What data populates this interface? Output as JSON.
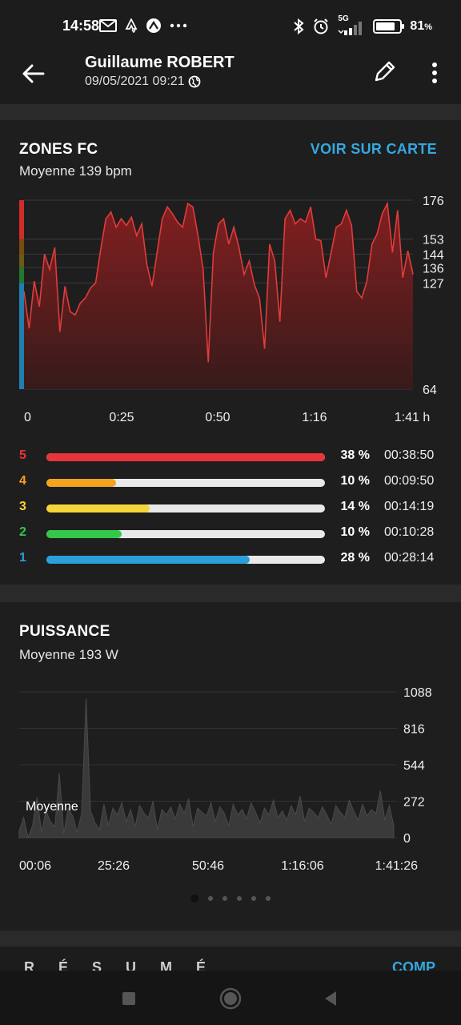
{
  "status": {
    "time": "14:58",
    "network": "5G",
    "battery_text": "81",
    "battery_unit": "%",
    "battery_level": 0.81
  },
  "header": {
    "name": "Guillaume ROBERT",
    "datetime": "09/05/2021 09:21"
  },
  "hr": {
    "title": "ZONES FC",
    "subtitle": "Moyenne 139 bpm",
    "map_link": "VOIR SUR CARTE",
    "y_labels": [
      "176",
      "153",
      "144",
      "136",
      "127",
      "64"
    ],
    "x_labels": [
      "0",
      "0:25",
      "0:50",
      "1:16",
      "1:41 h"
    ],
    "zones": [
      {
        "num": "5",
        "percent": "38 %",
        "time": "00:38:50",
        "fraction": 1.0,
        "color": "#e8343a"
      },
      {
        "num": "4",
        "percent": "10 %",
        "time": "00:09:50",
        "fraction": 0.25,
        "color": "#f6a21e"
      },
      {
        "num": "3",
        "percent": "14 %",
        "time": "00:14:19",
        "fraction": 0.37,
        "color": "#f5d53a"
      },
      {
        "num": "2",
        "percent": "10 %",
        "time": "00:10:28",
        "fraction": 0.27,
        "color": "#33c84a"
      },
      {
        "num": "1",
        "percent": "28 %",
        "time": "00:28:14",
        "fraction": 0.73,
        "color": "#2a9fd8"
      }
    ]
  },
  "power": {
    "title": "PUISSANCE",
    "subtitle": "Moyenne 193 W",
    "avg_label": "Moyenne",
    "y_labels": [
      "1088",
      "816",
      "544",
      "272",
      "0"
    ],
    "x_labels": [
      "00:06",
      "25:26",
      "50:46",
      "1:16:06",
      "1:41:26"
    ]
  },
  "bottom": {
    "peek_text": "RÉSUMÉ",
    "peek_link": "COMP"
  },
  "chart_data": [
    {
      "type": "area",
      "title": "ZONES FC",
      "subtitle": "Moyenne 139 bpm",
      "x_ticks": [
        "0",
        "0:25",
        "0:50",
        "1:16",
        "1:41 h"
      ],
      "y_ticks": [
        176,
        153,
        144,
        136,
        127,
        64
      ],
      "ylim": [
        64,
        176
      ],
      "zone_thresholds": [
        127,
        136,
        144,
        153
      ],
      "series": [
        {
          "values": [
            122,
            100,
            128,
            113,
            144,
            135,
            148,
            98,
            125,
            110,
            108,
            115,
            118,
            124,
            127,
            147,
            165,
            169,
            160,
            165,
            161,
            166,
            155,
            162,
            138,
            125,
            145,
            165,
            172,
            168,
            163,
            160,
            174,
            172,
            155,
            135,
            80,
            145,
            162,
            165,
            150,
            160,
            148,
            132,
            140,
            126,
            118,
            88,
            150,
            140,
            104,
            165,
            170,
            162,
            165,
            163,
            172,
            153,
            152,
            130,
            145,
            160,
            162,
            170,
            161,
            122,
            118,
            128,
            150,
            156,
            168,
            174,
            145,
            170,
            130,
            146,
            132
          ]
        }
      ]
    },
    {
      "type": "area",
      "title": "PUISSANCE",
      "subtitle": "Moyenne 193 W",
      "x_ticks": [
        "00:06",
        "25:26",
        "50:46",
        "1:16:06",
        "1:41:26"
      ],
      "y_ticks": [
        0,
        272,
        544,
        816,
        1088
      ],
      "ylim": [
        0,
        1088
      ],
      "average": 193,
      "series": [
        {
          "values": [
            50,
            150,
            0,
            90,
            300,
            40,
            200,
            120,
            80,
            480,
            30,
            220,
            160,
            40,
            180,
            1040,
            200,
            110,
            60,
            250,
            90,
            220,
            170,
            260,
            120,
            210,
            80,
            240,
            180,
            150,
            270,
            60,
            210,
            170,
            230,
            140,
            250,
            180,
            290,
            80,
            220,
            190,
            160,
            260,
            120,
            230,
            180,
            90,
            250,
            170,
            210,
            140,
            260,
            190,
            110,
            220,
            170,
            280,
            150,
            200,
            130,
            240,
            170,
            310,
            120,
            220,
            190,
            150,
            230,
            170,
            100,
            240,
            190,
            150,
            280,
            200,
            130,
            250,
            160,
            210,
            180,
            350,
            130,
            240,
            90
          ]
        }
      ]
    }
  ]
}
